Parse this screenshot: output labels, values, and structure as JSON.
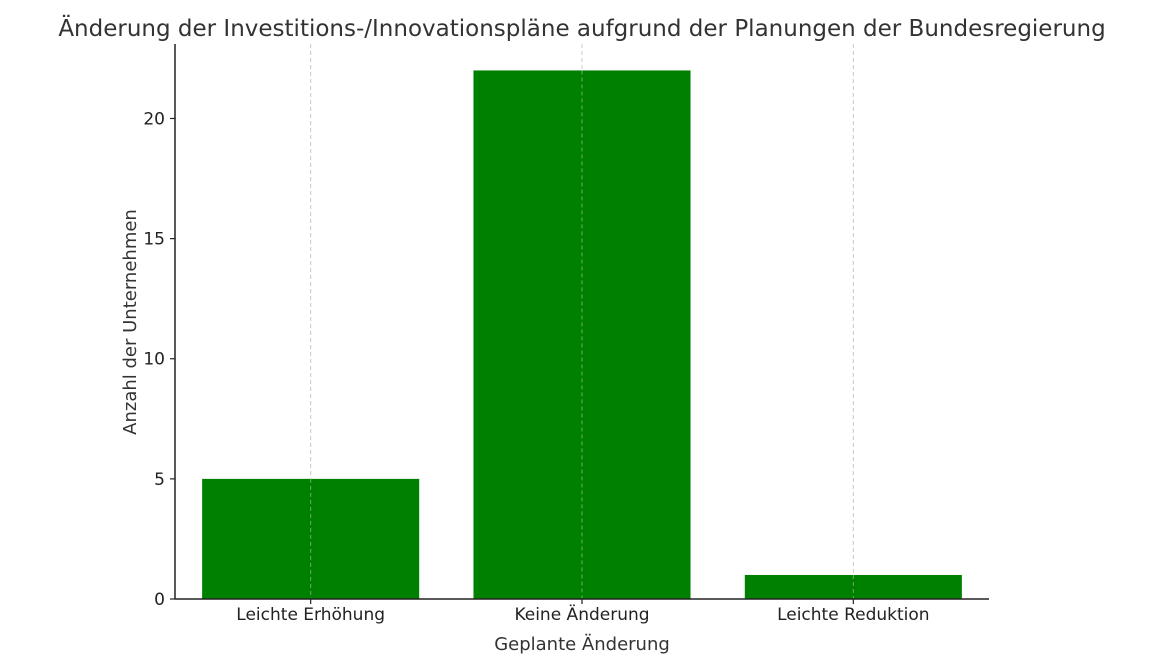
{
  "chart_data": {
    "type": "bar",
    "title": "Änderung der Investitions-/Innovationspläne aufgrund der Planungen der Bundesregierung",
    "xlabel": "Geplante Änderung",
    "ylabel": "Anzahl der Unternehmen",
    "categories": [
      "Leichte Erhöhung",
      "Keine Änderung",
      "Leichte Reduktion"
    ],
    "values": [
      5,
      22,
      1
    ],
    "ylim": [
      0,
      23.1
    ],
    "yticks": [
      0,
      5,
      10,
      15,
      20
    ],
    "grid": "x-vertical-dashed",
    "bar_color": "#008000",
    "grid_color": "#c8c8c8",
    "text_color": "#333333"
  }
}
